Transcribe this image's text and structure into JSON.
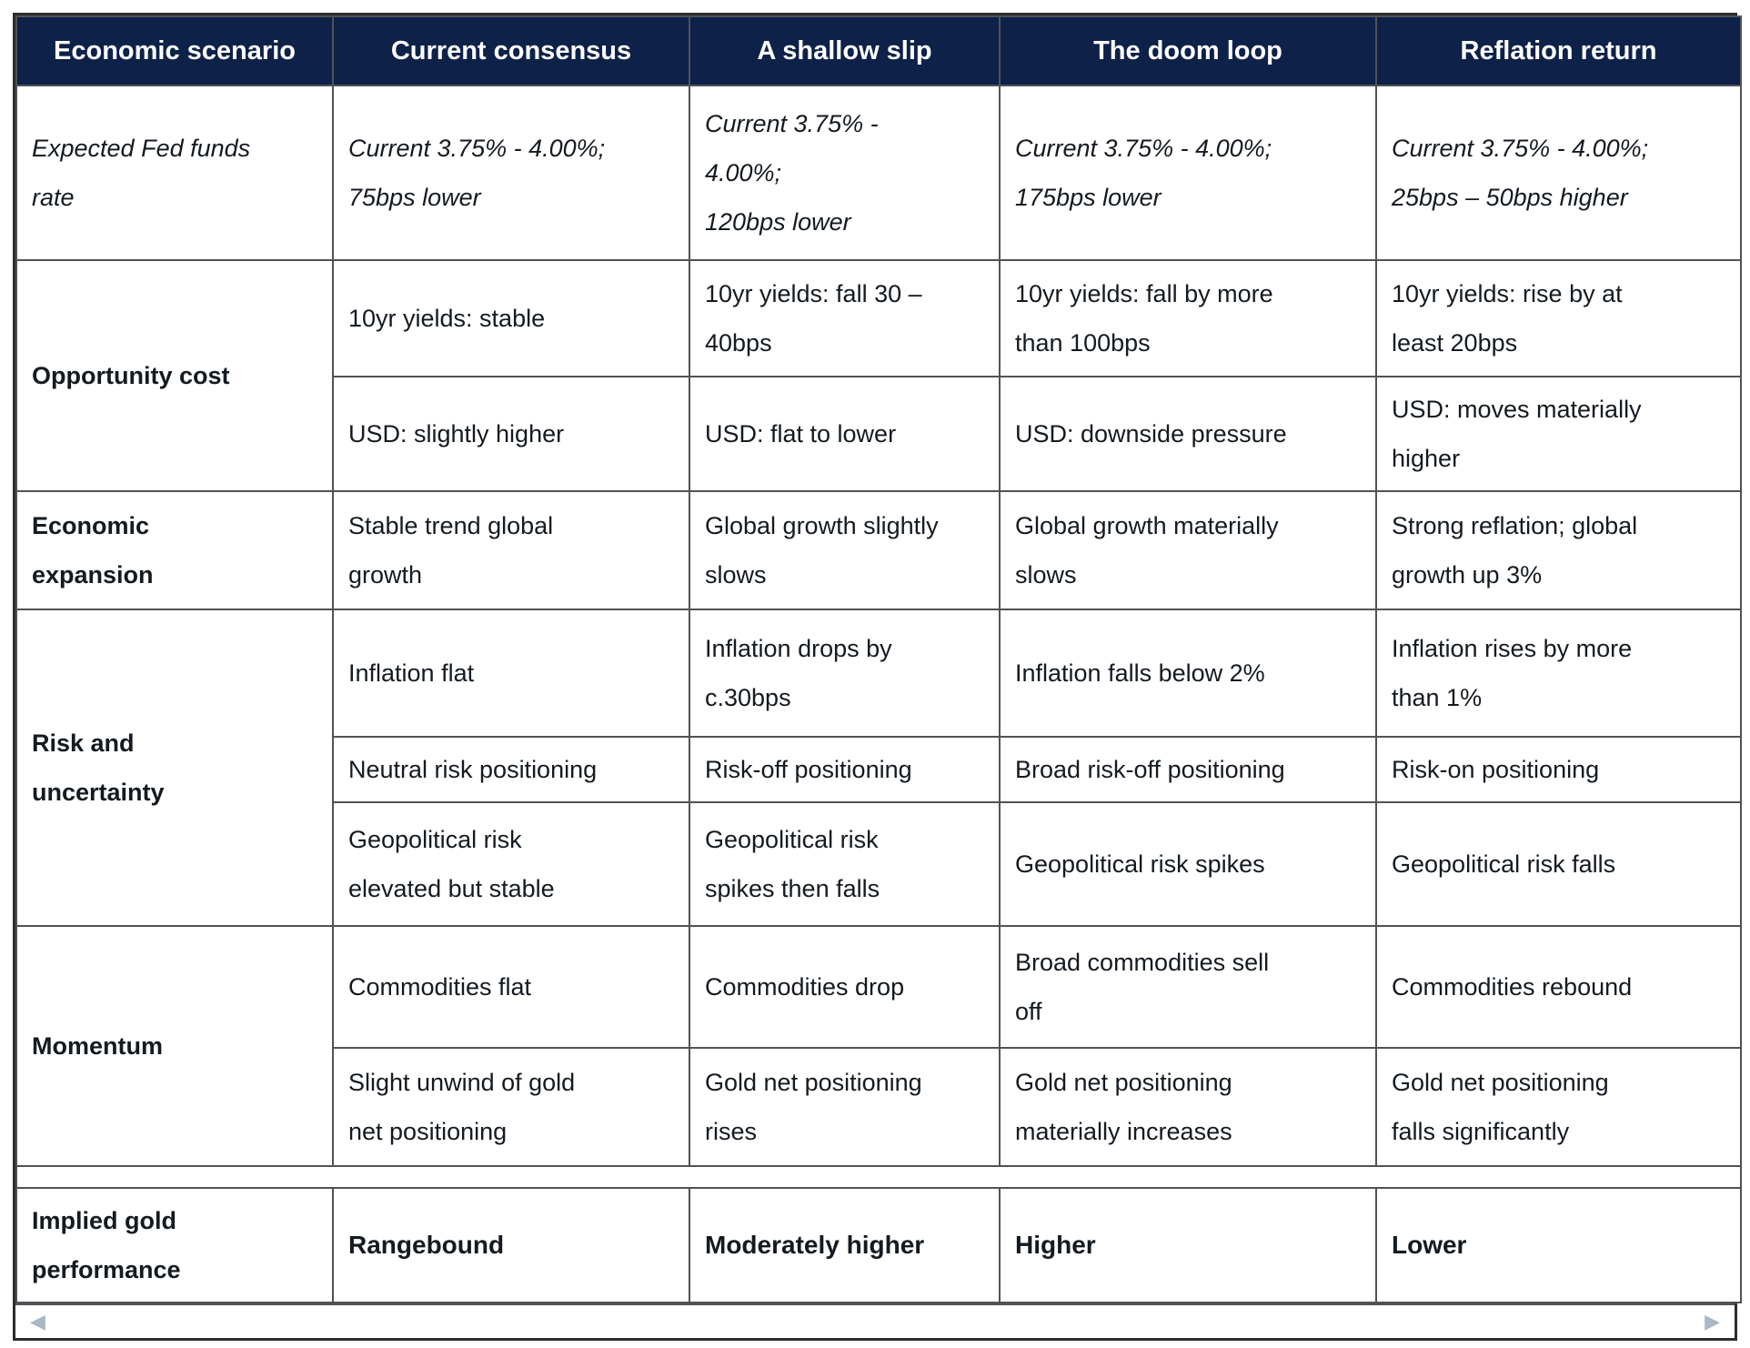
{
  "colors": {
    "header_bg": "#0e2148",
    "header_text": "#ffffff",
    "cell_text": "#141a20",
    "cyan": "#c2fcfe",
    "pink": "#fbdefb",
    "blue": "#5fc2f7",
    "purple": "#cf82f2",
    "white": "#ffffff",
    "border": "#4f5356",
    "outer_border": "#2a2d2f",
    "scroll_arrow": "#a9b9c4"
  },
  "scrollbar": {
    "left_arrow": "◀",
    "right_arrow": "▶"
  },
  "table": {
    "header": [
      "Economic scenario",
      "Current consensus",
      "A shallow slip",
      "The doom loop",
      "Reflation return"
    ],
    "sections": [
      {
        "id": "expected-fed-funds-rate",
        "label": "Expected Fed funds\nrate",
        "label_style": "italic",
        "rows": [
          [
            {
              "text": "Current 3.75% - 4.00%;\n75bps lower",
              "bg": "white",
              "italic": true
            },
            {
              "text": "Current 3.75% -\n4.00%;\n120bps lower",
              "bg": "white",
              "italic": true
            },
            {
              "text": "Current 3.75% - 4.00%;\n175bps lower",
              "bg": "white",
              "italic": true
            },
            {
              "text": "Current 3.75% - 4.00%;\n25bps – 50bps higher",
              "bg": "white",
              "italic": true
            }
          ]
        ]
      },
      {
        "id": "opportunity-cost",
        "label": "Opportunity cost",
        "label_style": "bold",
        "rows": [
          [
            {
              "text": "10yr yields: stable",
              "bg": "white"
            },
            {
              "text": "10yr yields: fall 30 –\n40bps",
              "bg": "cyan"
            },
            {
              "text": "10yr yields: fall by more\nthan 100bps",
              "bg": "blue"
            },
            {
              "text": "10yr yields: rise by at\nleast 20bps",
              "bg": "pink"
            }
          ],
          [
            {
              "text": "USD: slightly higher",
              "bg": "pink"
            },
            {
              "text": "USD: flat to lower",
              "bg": "white"
            },
            {
              "text": "USD: downside pressure",
              "bg": "cyan"
            },
            {
              "text": "USD: moves materially\nhigher",
              "bg": "purple"
            }
          ]
        ]
      },
      {
        "id": "economic-expansion",
        "label": "Economic\nexpansion",
        "label_style": "bold",
        "rows": [
          [
            {
              "text": "Stable trend global\ngrowth",
              "bg": "cyan"
            },
            {
              "text": "Global growth slightly\nslows",
              "bg": "pink"
            },
            {
              "text": "Global growth materially\nslows",
              "bg": "purple"
            },
            {
              "text": "Strong reflation; global\ngrowth up 3%",
              "bg": "blue"
            }
          ]
        ]
      },
      {
        "id": "risk-and-uncertainty",
        "label": "Risk and\nuncertainty",
        "label_style": "bold",
        "rows": [
          [
            {
              "text": "Inflation flat",
              "bg": "white"
            },
            {
              "text": "Inflation drops by\nc.30bps",
              "bg": "white"
            },
            {
              "text": "Inflation falls below 2%",
              "bg": "pink"
            },
            {
              "text": "Inflation rises by more\nthan 1%",
              "bg": "blue"
            }
          ],
          [
            {
              "text": "Neutral risk positioning",
              "bg": "white"
            },
            {
              "text": "Risk-off positioning",
              "bg": "cyan"
            },
            {
              "text": "Broad risk-off positioning",
              "bg": "blue"
            },
            {
              "text": "Risk-on positioning",
              "bg": "pink"
            }
          ],
          [
            {
              "text": "Geopolitical risk\nelevated but stable",
              "bg": "cyan"
            },
            {
              "text": "Geopolitical risk\nspikes then falls",
              "bg": "cyan"
            },
            {
              "text": "Geopolitical risk spikes",
              "bg": "blue"
            },
            {
              "text": "Geopolitical risk falls",
              "bg": "purple"
            }
          ]
        ]
      },
      {
        "id": "momentum",
        "label": "Momentum",
        "label_style": "bold",
        "rows": [
          [
            {
              "text": "Commodities flat",
              "bg": "white"
            },
            {
              "text": "Commodities drop",
              "bg": "pink"
            },
            {
              "text": "Broad commodities sell\noff",
              "bg": "purple"
            },
            {
              "text": "Commodities rebound",
              "bg": "cyan"
            }
          ],
          [
            {
              "text": "Slight unwind of gold\nnet positioning",
              "bg": "pink"
            },
            {
              "text": "Gold net positioning\nrises",
              "bg": "cyan"
            },
            {
              "text": "Gold net positioning\nmaterially increases",
              "bg": "blue"
            },
            {
              "text": "Gold net positioning\nfalls significantly",
              "bg": "purple"
            }
          ]
        ]
      },
      {
        "id": "separator",
        "type": "separator"
      },
      {
        "id": "implied-gold-performance",
        "label": "Implied gold\nperformance",
        "label_style": "bold",
        "rows": [
          [
            {
              "text": "Rangebound",
              "bg": "white",
              "bold": true
            },
            {
              "text": "Moderately higher",
              "bg": "cyan",
              "bold": true
            },
            {
              "text": "Higher",
              "bg": "blue",
              "bold": true
            },
            {
              "text": "Lower",
              "bg": "purple",
              "bold": true
            }
          ]
        ]
      }
    ]
  }
}
